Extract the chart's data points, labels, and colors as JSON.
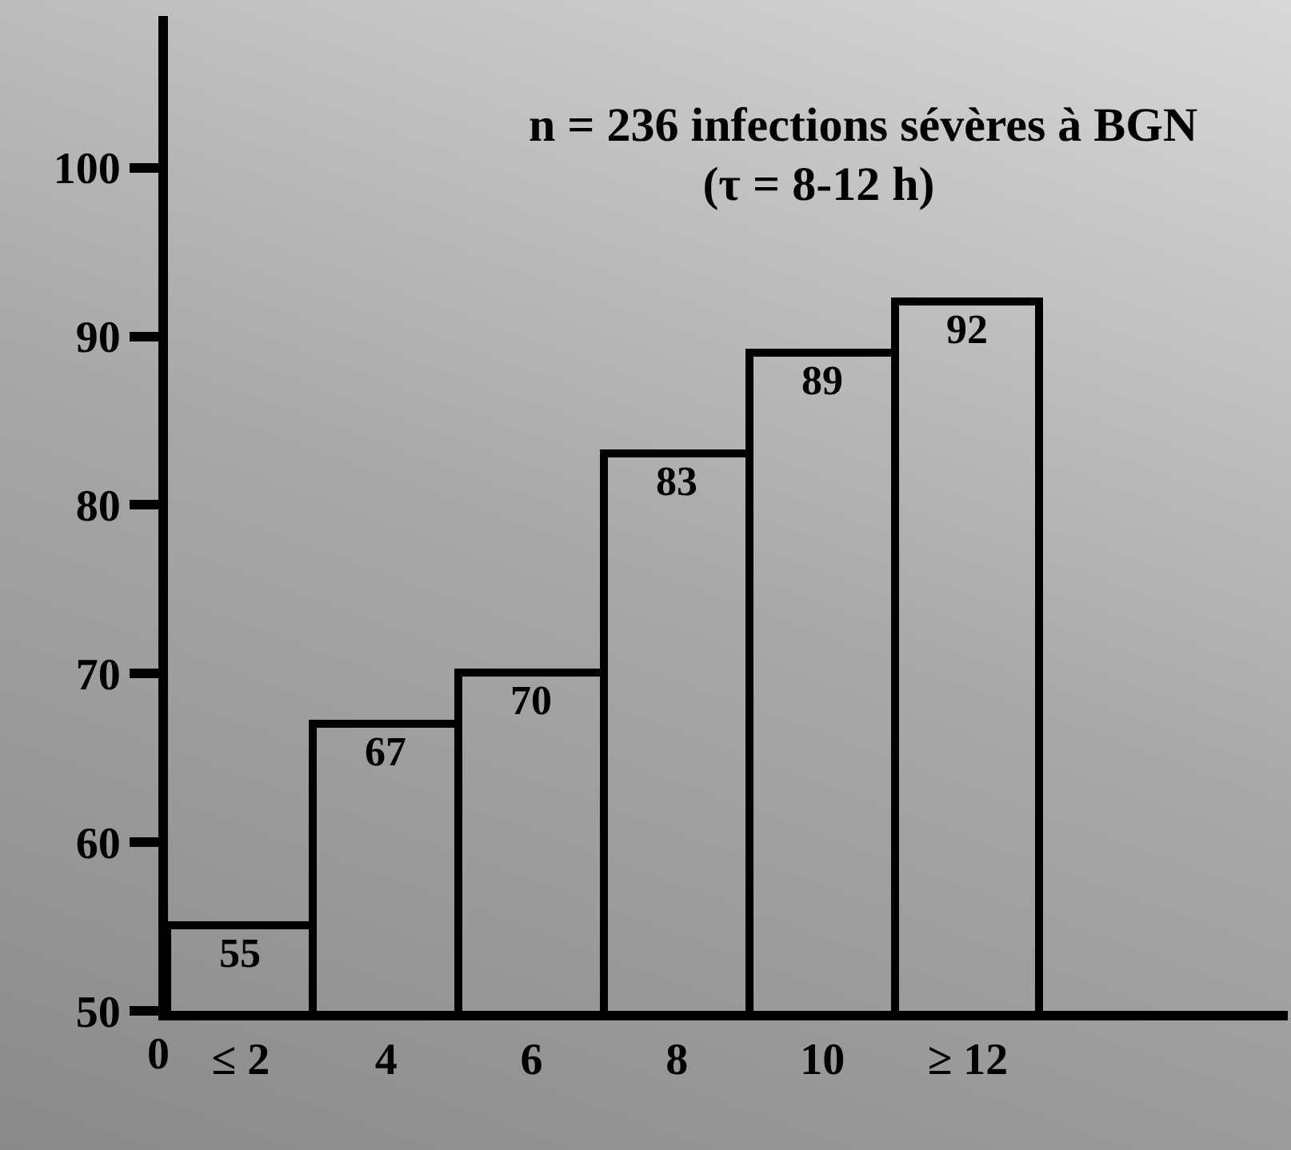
{
  "chart_data": {
    "type": "bar",
    "title": "n = 236 infections sévères à BGN",
    "subtitle": "(τ = 8-12 h)",
    "categories": [
      "≤ 2",
      "4",
      "6",
      "8",
      "10",
      "≥ 12"
    ],
    "values": [
      55,
      67,
      70,
      83,
      89,
      92
    ],
    "color": "#000000",
    "data_labels": true,
    "annotations": [
      "0"
    ],
    "ylim": [
      50,
      109
    ],
    "yticks": [
      50,
      60,
      70,
      80,
      90,
      100
    ],
    "grid": false
  }
}
